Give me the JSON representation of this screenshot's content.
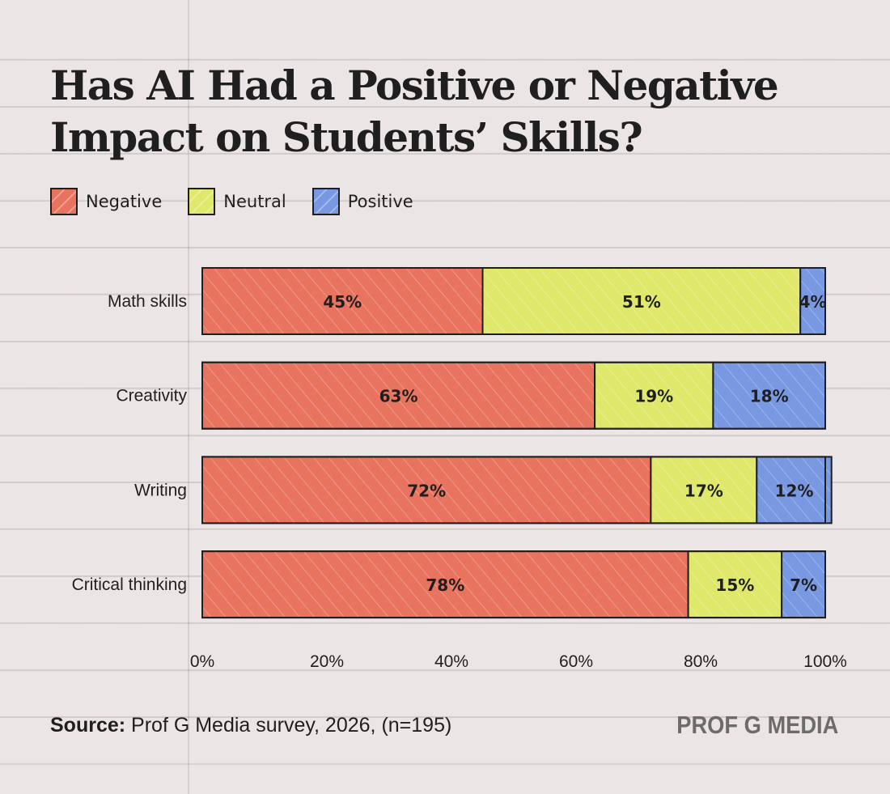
{
  "title_line1": "Has AI Had a Positive or Negative",
  "title_line2": "Impact on Students’ Skills?",
  "legend": [
    {
      "label": "Negative",
      "color": "#e8735f"
    },
    {
      "label": "Neutral",
      "color": "#dfe86b"
    },
    {
      "label": "Positive",
      "color": "#7898e2"
    }
  ],
  "source_label": "Source:",
  "source_text": " Prof G Media survey, 2026, (n=195)",
  "brand": "PROF G MEDIA",
  "chart_data": {
    "type": "bar",
    "orientation": "horizontal",
    "stacked": true,
    "categories": [
      "Math skills",
      "Creativity",
      "Writing",
      "Critical thinking"
    ],
    "series": [
      {
        "name": "Negative",
        "values": [
          45,
          63,
          72,
          78
        ],
        "labels": [
          "45%",
          "63%",
          "72%",
          "78%"
        ],
        "color": "#e8735f"
      },
      {
        "name": "Neutral",
        "values": [
          51,
          19,
          17,
          15
        ],
        "labels": [
          "51%",
          "19%",
          "17%",
          "15%"
        ],
        "color": "#dfe86b"
      },
      {
        "name": "Positive",
        "values": [
          4,
          18,
          12,
          7
        ],
        "labels": [
          "4%",
          "18%",
          "12%",
          "7%"
        ],
        "color": "#7898e2"
      }
    ],
    "xlim": [
      0,
      100
    ],
    "x_ticks": [
      0,
      20,
      40,
      60,
      80,
      100
    ],
    "x_tick_labels": [
      "0%",
      "20%",
      "40%",
      "60%",
      "80%",
      "100%"
    ],
    "legend_position": "top-left",
    "grid": false
  }
}
